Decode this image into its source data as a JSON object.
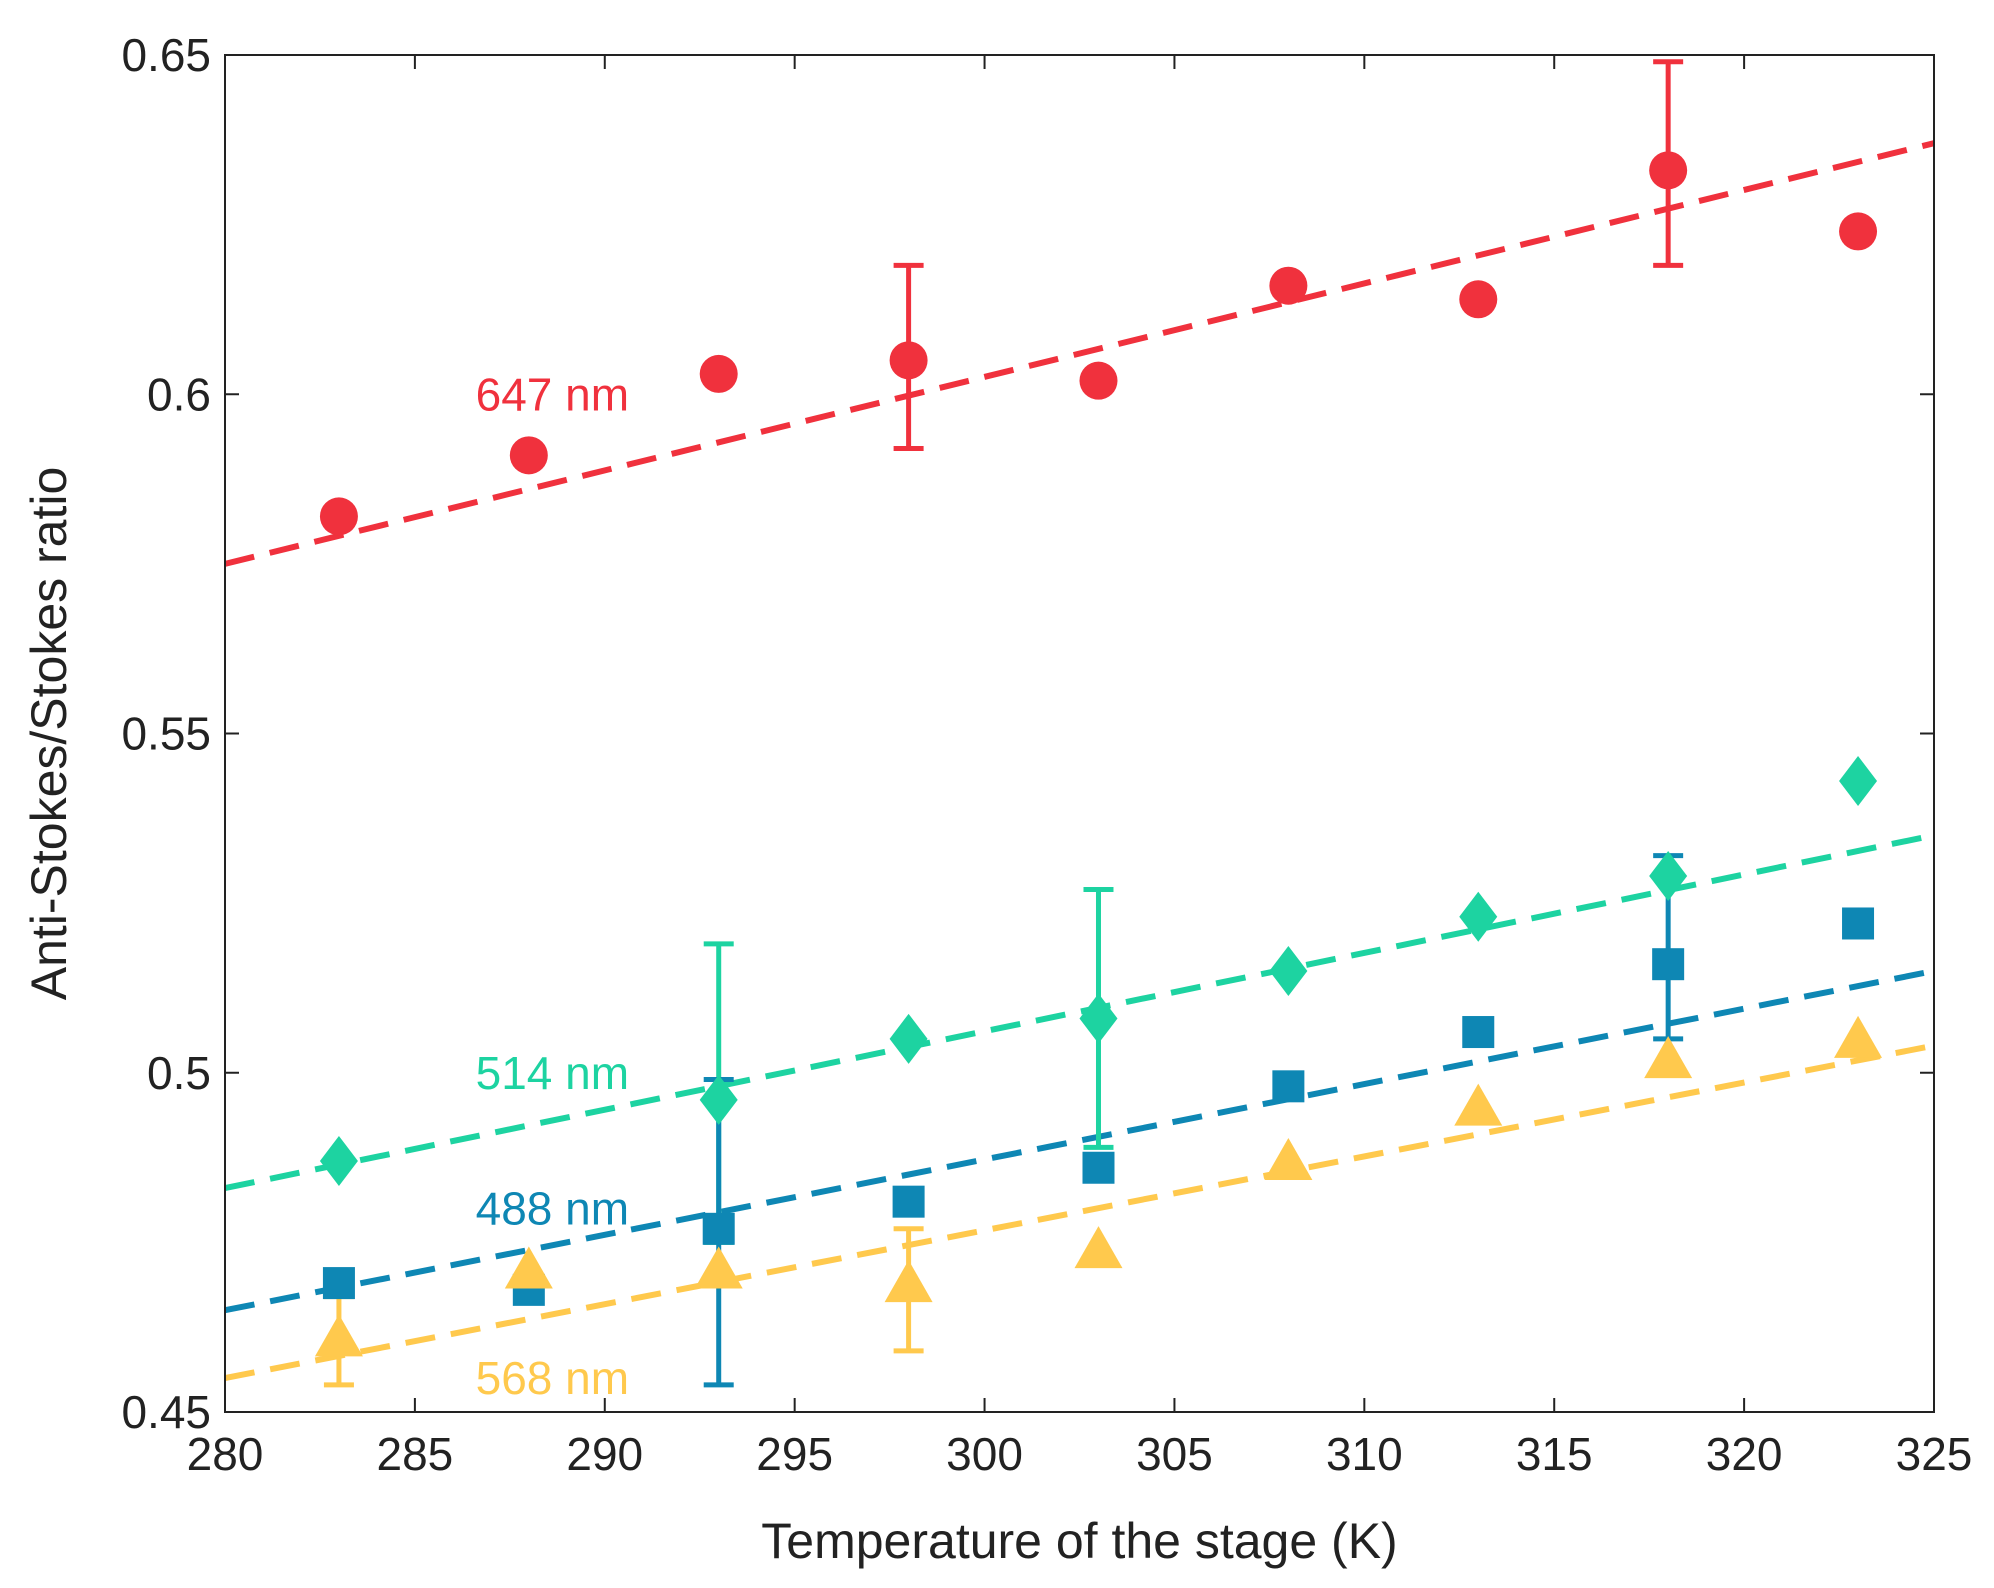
{
  "chart_data": {
    "type": "scatter",
    "title": "",
    "xlabel": "Temperature of the stage (K)",
    "ylabel": "Anti-Stokes/Stokes ratio",
    "xlim": [
      280,
      325
    ],
    "ylim": [
      0.45,
      0.65
    ],
    "xticks": [
      280,
      285,
      290,
      295,
      300,
      305,
      310,
      315,
      320,
      325
    ],
    "yticks": [
      0.45,
      0.5,
      0.55,
      0.6,
      0.65
    ],
    "xtick_labels": [
      "280",
      "285",
      "290",
      "295",
      "300",
      "305",
      "310",
      "315",
      "320",
      "325"
    ],
    "ytick_labels": [
      "0.45",
      "0.5",
      "0.55",
      "0.6",
      "0.65"
    ],
    "grid": false,
    "series": [
      {
        "name": "647 nm",
        "label": "647 nm",
        "color": "#F0313D",
        "marker": "circle",
        "x": [
          283,
          288,
          293,
          298,
          303,
          308,
          313,
          318,
          323
        ],
        "y": [
          0.582,
          0.591,
          0.603,
          0.605,
          0.602,
          0.616,
          0.614,
          0.633,
          0.624
        ],
        "errorbars": [
          {
            "x": 298,
            "low": 0.592,
            "high": 0.619
          },
          {
            "x": 318,
            "low": 0.619,
            "high": 0.649
          }
        ],
        "fit": {
          "x": [
            280,
            325
          ],
          "y": [
            0.575,
            0.637
          ]
        }
      },
      {
        "name": "514 nm",
        "label": "514 nm",
        "color": "#1DD3A1",
        "marker": "diamond",
        "x": [
          283,
          293,
          298,
          303,
          308,
          313,
          318,
          323
        ],
        "y": [
          0.487,
          0.496,
          0.505,
          0.508,
          0.515,
          0.523,
          0.529,
          0.543
        ],
        "errorbars": [
          {
            "x": 293,
            "low": 0.475,
            "high": 0.519
          },
          {
            "x": 303,
            "low": 0.489,
            "high": 0.527
          }
        ],
        "fit": {
          "x": [
            280,
            325
          ],
          "y": [
            0.483,
            0.535
          ]
        }
      },
      {
        "name": "488 nm",
        "label": "488 nm",
        "color": "#0E87B4",
        "marker": "square",
        "x": [
          283,
          288,
          293,
          298,
          303,
          308,
          313,
          318,
          323
        ],
        "y": [
          0.469,
          0.468,
          0.477,
          0.481,
          0.486,
          0.498,
          0.506,
          0.516,
          0.522
        ],
        "errorbars": [
          {
            "x": 293,
            "low": 0.454,
            "high": 0.499
          },
          {
            "x": 318,
            "low": 0.505,
            "high": 0.532
          }
        ],
        "fit": {
          "x": [
            280,
            325
          ],
          "y": [
            0.465,
            0.515
          ]
        }
      },
      {
        "name": "568 nm",
        "label": "568 nm",
        "color": "#FFC94D",
        "marker": "triangle",
        "x": [
          283,
          288,
          293,
          298,
          303,
          308,
          313,
          318,
          323
        ],
        "y": [
          0.461,
          0.471,
          0.471,
          0.469,
          0.474,
          0.487,
          0.495,
          0.502,
          0.505
        ],
        "errorbars": [
          {
            "x": 283,
            "low": 0.454,
            "high": 0.467
          },
          {
            "x": 298,
            "low": 0.459,
            "high": 0.477
          }
        ],
        "fit": {
          "x": [
            280,
            325
          ],
          "y": [
            0.455,
            0.504
          ]
        }
      }
    ],
    "annotations": [
      {
        "text": "647 nm",
        "series": "647 nm",
        "x": 286.6,
        "y": 0.6
      },
      {
        "text": "514 nm",
        "series": "514 nm",
        "x": 286.6,
        "y": 0.5
      },
      {
        "text": "488 nm",
        "series": "488 nm",
        "x": 286.6,
        "y": 0.48
      },
      {
        "text": "568 nm",
        "series": "568 nm",
        "x": 286.6,
        "y": 0.455
      }
    ]
  }
}
